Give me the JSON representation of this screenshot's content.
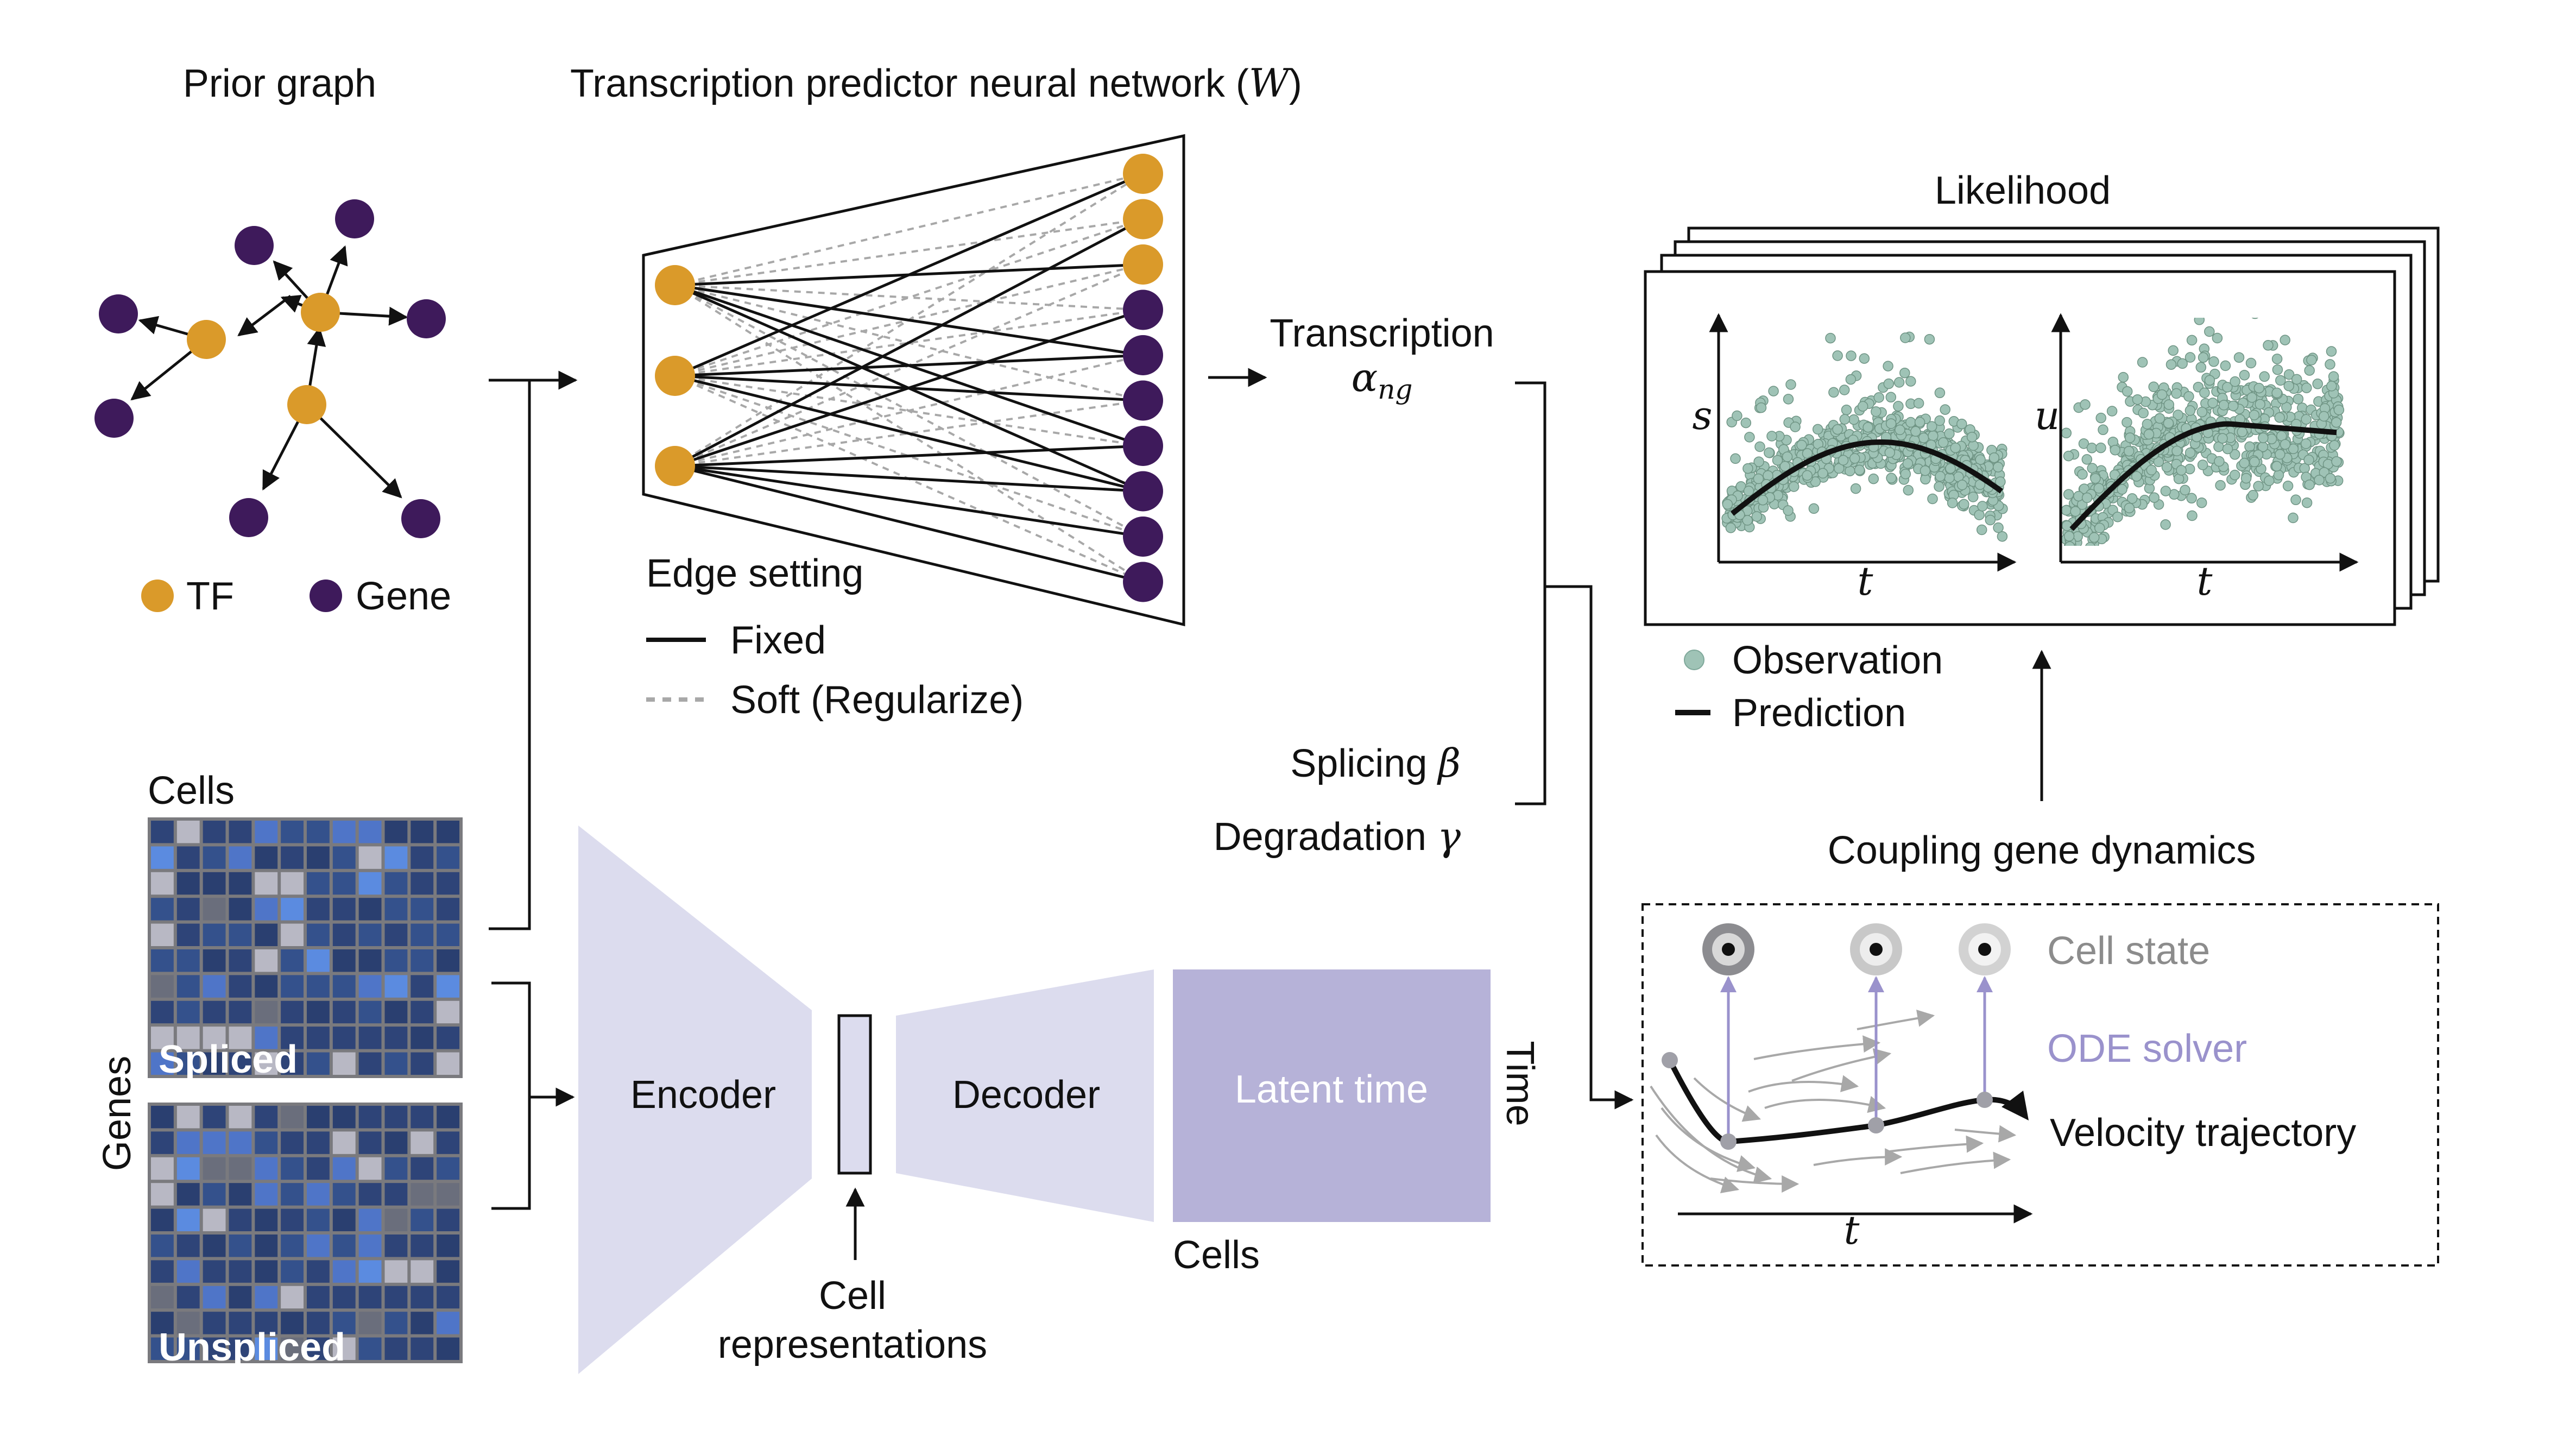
{
  "prior_graph": {
    "title": "Prior graph",
    "legend_tf": "TF",
    "legend_gene": "Gene"
  },
  "neural_network": {
    "title": "Transcription predictor neural network (",
    "title_symbol": "W",
    "title_close": ")",
    "edge_setting": "Edge setting",
    "fixed": "Fixed",
    "soft": "Soft (Regularize)"
  },
  "matrices": {
    "cells": "Cells",
    "genes": "Genes",
    "spliced": "Spliced",
    "unspliced": "Unspliced"
  },
  "vae": {
    "encoder": "Encoder",
    "decoder": "Decoder",
    "latent_time": "Latent time",
    "cell_repr_1": "Cell",
    "cell_repr_2": "representations",
    "cells": "Cells",
    "time": "Time"
  },
  "rates": {
    "transcription": "Transcription",
    "transcription_symbol": "α",
    "transcription_sub": "ng",
    "splicing": "Splicing",
    "splicing_symbol": "β",
    "degradation": "Degradation",
    "degradation_symbol": "γ"
  },
  "likelihood": {
    "title": "Likelihood",
    "s_label": "s",
    "u_label": "u",
    "t_label": "t",
    "observation": "Observation",
    "prediction": "Prediction"
  },
  "coupling": {
    "title": "Coupling gene dynamics",
    "cell_state": "Cell state",
    "ode_solver": "ODE solver",
    "velocity": "Velocity trajectory",
    "t_label": "t"
  },
  "colors": {
    "tf": "#DA9A2A",
    "gene": "#3E1A5B",
    "vae_light": "#DCDCEE",
    "latent": "#B6B2D8",
    "observation": "#9FC3B6",
    "ode": "#9A92CC",
    "cell_state": "#8C8C8C"
  }
}
